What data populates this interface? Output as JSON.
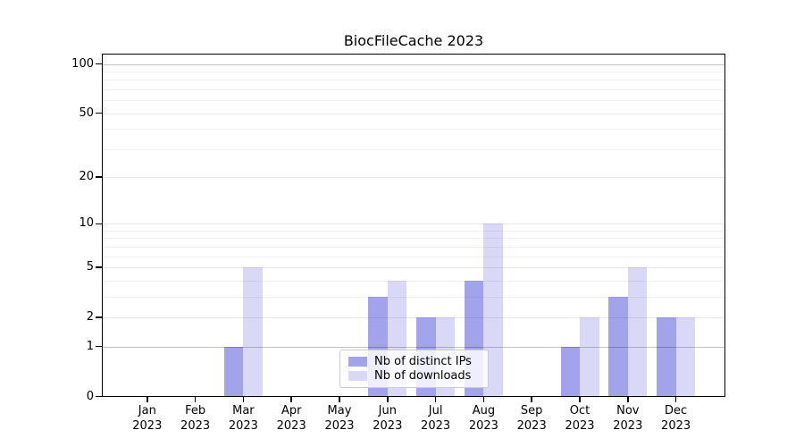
{
  "chart_data": {
    "type": "bar",
    "title": "BiocFileCache 2023",
    "categories": [
      "Jan",
      "Feb",
      "Mar",
      "Apr",
      "May",
      "Jun",
      "Jul",
      "Aug",
      "Sep",
      "Oct",
      "Nov",
      "Dec"
    ],
    "category_year": "2023",
    "series": [
      {
        "name": "Nb of distinct IPs",
        "color": "#a3a3ec",
        "values": [
          0,
          0,
          1,
          0,
          0,
          3,
          2,
          4,
          0,
          1,
          3,
          2
        ]
      },
      {
        "name": "Nb of downloads",
        "color": "#d9d9f7",
        "values": [
          0,
          0,
          5,
          0,
          0,
          4,
          2,
          10,
          0,
          2,
          5,
          2
        ]
      }
    ],
    "yscale": "log1p",
    "ylim": [
      0,
      115
    ],
    "yticks": [
      0,
      1,
      2,
      5,
      10,
      20,
      50,
      100
    ],
    "minor_gridline_values": [
      3,
      4,
      6,
      7,
      8,
      9,
      30,
      40,
      60,
      70,
      80,
      90
    ],
    "emphasized_gridline_values": [
      1,
      100
    ],
    "grid": true,
    "legend_position": "lower-center-inside",
    "xlabel": "",
    "ylabel": ""
  },
  "colors": {
    "background": "#ffffff",
    "axis": "#000000",
    "gridline_emphasized": "rgba(0,0,0,0.23)",
    "gridline_major": "rgba(0,0,0,0.09)",
    "gridline_minor": "rgba(0,0,0,0.05)",
    "legend_border": "#cbcbcb"
  }
}
